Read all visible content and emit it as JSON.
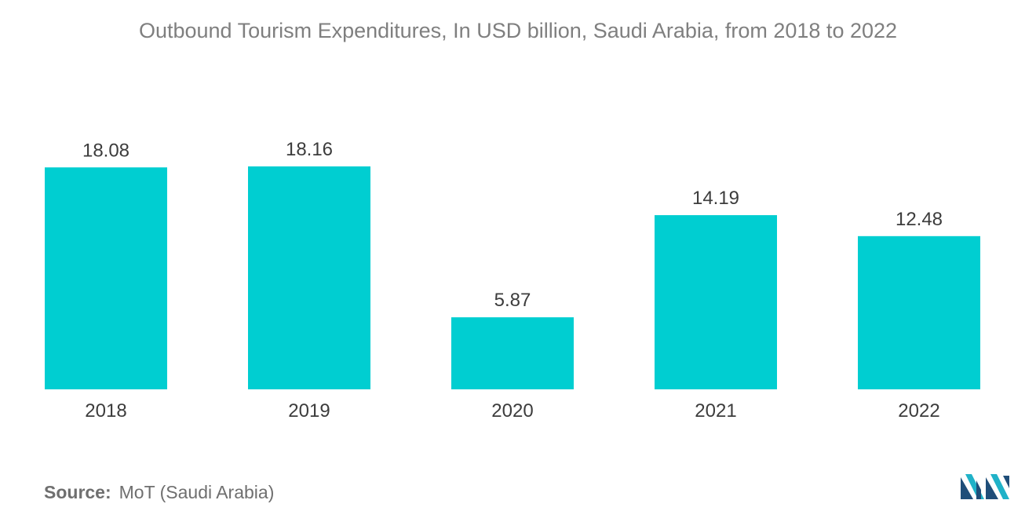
{
  "chart_data": {
    "type": "bar",
    "title": "Outbound Tourism Expenditures, In USD billion, Saudi Arabia, from 2018 to 2022",
    "categories": [
      "2018",
      "2019",
      "2020",
      "2021",
      "2022"
    ],
    "values": [
      18.08,
      18.16,
      5.87,
      14.19,
      12.48
    ],
    "value_labels": [
      "18.08",
      "18.16",
      "5.87",
      "14.19",
      "12.48"
    ],
    "ylim": [
      0,
      18.16
    ],
    "grid": false,
    "legend": "none",
    "bar_color": "#00CED1"
  },
  "source": {
    "label": "Source:",
    "text": "MoT (Saudi Arabia)"
  },
  "logo": {
    "icon": "mordor-intelligence-logo-icon",
    "colors": [
      "#1F4E79",
      "#20B2C8"
    ]
  }
}
